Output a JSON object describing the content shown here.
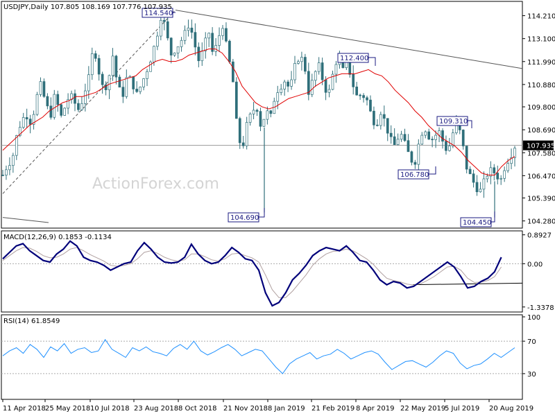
{
  "header": {
    "symbol_line": "USDJPY,Daily  107.805 108.169 107.776 107.935",
    "macd_label": "MACD(12,26,9) 0.1853 -0.1134",
    "rsi_label": "RSI(14) 61.8549"
  },
  "watermark": "ActionForex.com",
  "colors": {
    "candle": "#2f6f7a",
    "ma": "#e00000",
    "macd_line": "#00007a",
    "signal": "#b0a0a0",
    "rsi": "#1e90ff",
    "trend": "#555555",
    "label_border": "#1a1a80",
    "label_text": "#1a1a80",
    "current_bg": "#000000"
  },
  "chart_data": [
    {
      "type": "candlestick",
      "title": "USDJPY,Daily",
      "ohlc_last": {
        "open": 107.805,
        "high": 108.169,
        "low": 107.776,
        "close": 107.935
      },
      "y_ticks": [
        114.21,
        113.1,
        111.99,
        110.88,
        109.8,
        108.69,
        107.58,
        106.47,
        105.39,
        104.28
      ],
      "ylim": [
        104.0,
        114.8
      ],
      "current_price": "107.935",
      "x_tick_labels": [
        "11 Apr 2018",
        "25 May 2018",
        "10 Jul 2018",
        "23 Aug 2018",
        "8 Oct 2018",
        "21 Nov 2018",
        "8 Jan 2019",
        "21 Feb 2019",
        "8 Apr 2019",
        "22 May 2019",
        "5 Jul 2019",
        "20 Aug 2019"
      ],
      "price_path": [
        106.5,
        107.0,
        107.3,
        108.5,
        109.2,
        109.4,
        109.0,
        110.2,
        110.9,
        109.9,
        109.4,
        110.5,
        109.2,
        109.8,
        110.4,
        110.0,
        109.6,
        110.5,
        111.2,
        112.8,
        111.6,
        110.6,
        111.0,
        112.3,
        110.8,
        110.3,
        111.3,
        111.0,
        110.4,
        110.9,
        111.5,
        112.2,
        113.0,
        114.2,
        113.7,
        112.3,
        112.6,
        112.9,
        113.3,
        113.9,
        112.9,
        112.0,
        112.6,
        113.5,
        112.2,
        113.1,
        113.8,
        112.3,
        111.3,
        108.6,
        107.7,
        108.9,
        109.5,
        109.9,
        108.8,
        109.6,
        109.3,
        110.5,
        110.8,
        111.1,
        110.6,
        111.7,
        112.3,
        111.9,
        110.4,
        111.3,
        111.8,
        111.0,
        110.3,
        111.4,
        112.3,
        111.5,
        112.0,
        111.0,
        110.3,
        110.4,
        110.2,
        109.4,
        108.9,
        109.6,
        109.0,
        108.2,
        107.9,
        108.6,
        108.0,
        107.4,
        107.0,
        108.1,
        108.9,
        108.4,
        108.2,
        108.7,
        108.1,
        107.6,
        108.5,
        109.1,
        108.1,
        106.8,
        106.3,
        105.9,
        105.7,
        106.5,
        106.7,
        106.6,
        106.2,
        107.0,
        107.4,
        107.9
      ],
      "annotations": [
        {
          "text": "114.540",
          "value": 114.54
        },
        {
          "text": "104.690",
          "value": 104.69
        },
        {
          "text": "112.400",
          "value": 112.4
        },
        {
          "text": "109.310",
          "value": 109.31
        },
        {
          "text": "106.780",
          "value": 106.78
        },
        {
          "text": "104.450",
          "value": 104.45
        }
      ],
      "series": [
        {
          "values": [
            107.7,
            108.0,
            108.3,
            108.6,
            108.9,
            109.1,
            109.3,
            109.6,
            109.8,
            110.0,
            110.1,
            110.3,
            110.3,
            110.4,
            110.5,
            110.7,
            110.9,
            111.0,
            111.1,
            111.2,
            111.3,
            111.6,
            111.8,
            112.0,
            112.1,
            112.0,
            112.0,
            112.1,
            112.3,
            112.4,
            112.5,
            112.6,
            112.6,
            112.4,
            112.0,
            111.5,
            110.8,
            110.4,
            110.0,
            109.8,
            109.7,
            109.8,
            110.0,
            110.2,
            110.3,
            110.4,
            110.5,
            110.8,
            111.0,
            111.2,
            111.3,
            111.4,
            111.4,
            111.4,
            111.5,
            111.6,
            111.4,
            111.3,
            111.0,
            110.6,
            110.3,
            110.0,
            109.6,
            109.3,
            108.9,
            108.6,
            108.3,
            108.1,
            107.9,
            107.6,
            107.2,
            106.9,
            106.6,
            106.5,
            106.5,
            106.9,
            107.2,
            107.4
          ]
        }
      ]
    },
    {
      "type": "line",
      "title": "MACD(12,26,9)",
      "y_ticks": [
        0.8927,
        0.0,
        -1.3378
      ],
      "values": [
        0.15,
        0.35,
        0.55,
        0.62,
        0.4,
        0.25,
        0.1,
        0.05,
        0.3,
        0.45,
        0.7,
        0.55,
        0.2,
        0.1,
        0.05,
        -0.05,
        -0.2,
        -0.1,
        0.0,
        0.05,
        0.4,
        0.65,
        0.45,
        0.2,
        0.05,
        0.02,
        0.05,
        0.2,
        0.6,
        0.3,
        0.1,
        0.0,
        0.05,
        0.25,
        0.5,
        0.35,
        0.15,
        0.1,
        -0.2,
        -0.9,
        -1.3,
        -1.2,
        -0.9,
        -0.5,
        -0.3,
        -0.05,
        0.25,
        0.4,
        0.5,
        0.45,
        0.4,
        0.55,
        0.35,
        0.1,
        0.05,
        -0.2,
        -0.5,
        -0.65,
        -0.55,
        -0.6,
        -0.75,
        -0.7,
        -0.55,
        -0.4,
        -0.25,
        -0.1,
        0.05,
        -0.1,
        -0.4,
        -0.75,
        -0.7,
        -0.55,
        -0.45,
        -0.25,
        0.2
      ],
      "signal": [
        0.1,
        0.25,
        0.4,
        0.5,
        0.48,
        0.38,
        0.25,
        0.18,
        0.2,
        0.3,
        0.45,
        0.5,
        0.4,
        0.28,
        0.18,
        0.08,
        -0.05,
        -0.08,
        -0.05,
        0.0,
        0.15,
        0.35,
        0.4,
        0.32,
        0.2,
        0.12,
        0.08,
        0.12,
        0.3,
        0.3,
        0.22,
        0.12,
        0.08,
        0.15,
        0.3,
        0.32,
        0.25,
        0.18,
        0.05,
        -0.35,
        -0.8,
        -1.05,
        -1.05,
        -0.85,
        -0.6,
        -0.35,
        -0.05,
        0.15,
        0.3,
        0.38,
        0.4,
        0.45,
        0.4,
        0.28,
        0.15,
        -0.02,
        -0.25,
        -0.45,
        -0.52,
        -0.56,
        -0.63,
        -0.66,
        -0.62,
        -0.52,
        -0.4,
        -0.25,
        -0.1,
        -0.08,
        -0.2,
        -0.45,
        -0.58,
        -0.57,
        -0.52,
        -0.4,
        -0.1
      ],
      "ylim": [
        -1.45,
        0.95
      ]
    },
    {
      "type": "line",
      "title": "RSI(14)",
      "y_ticks": [
        100,
        70,
        30
      ],
      "values": [
        52,
        58,
        62,
        55,
        66,
        60,
        50,
        63,
        58,
        67,
        55,
        60,
        62,
        56,
        58,
        72,
        60,
        55,
        50,
        62,
        58,
        63,
        57,
        55,
        52,
        61,
        66,
        60,
        70,
        58,
        53,
        57,
        62,
        66,
        60,
        52,
        56,
        60,
        58,
        48,
        38,
        30,
        42,
        48,
        52,
        56,
        48,
        52,
        54,
        60,
        55,
        48,
        52,
        56,
        58,
        54,
        44,
        35,
        40,
        45,
        46,
        42,
        38,
        44,
        52,
        58,
        55,
        43,
        36,
        40,
        42,
        48,
        55,
        50,
        56,
        62
      ],
      "ylim": [
        0,
        100
      ]
    }
  ]
}
